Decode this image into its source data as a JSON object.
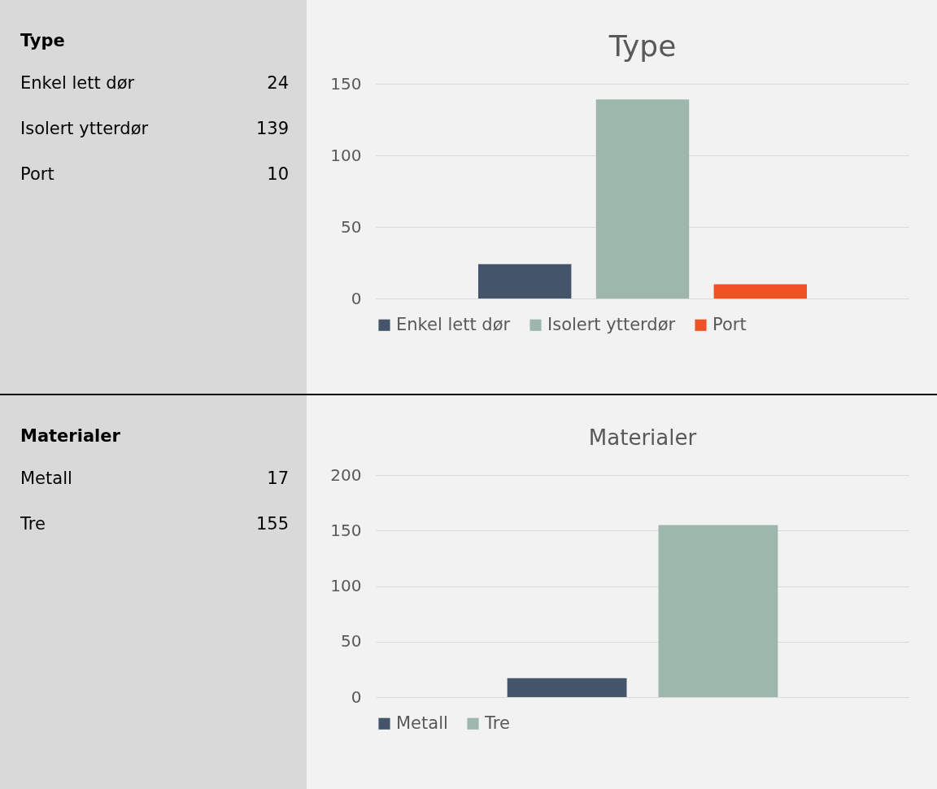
{
  "chart_data": [
    {
      "type": "other",
      "title": "Type",
      "categories": [
        "Enkel lett dør",
        "Isolert ytterdør",
        "Port"
      ],
      "values": [
        24,
        139,
        10
      ],
      "data_labels": true
    },
    {
      "type": "bar",
      "title": "Type",
      "categories": [
        null
      ],
      "series": [
        {
          "name": "Enkel lett dør",
          "color": "#44546a",
          "values": [
            24
          ]
        },
        {
          "name": "Isolert ytterdør",
          "color": "#9db7ad",
          "values": [
            139
          ]
        },
        {
          "name": "Port",
          "color": "#f05323",
          "values": [
            10
          ]
        }
      ],
      "ylim": [
        0,
        150
      ],
      "yticks": [
        0,
        50,
        100,
        150
      ],
      "grid": "y",
      "legend": "bottom"
    },
    {
      "type": "other",
      "title": "Materialer",
      "categories": [
        "Metall",
        "Tre"
      ],
      "values": [
        17,
        155
      ],
      "data_labels": true
    },
    {
      "type": "bar",
      "title": "Materialer",
      "categories": [
        null
      ],
      "series": [
        {
          "name": "Metall",
          "color": "#44546a",
          "values": [
            17
          ]
        },
        {
          "name": "Tre",
          "color": "#9db7ad",
          "values": [
            155
          ]
        }
      ],
      "ylim": [
        0,
        200
      ],
      "yticks": [
        0,
        50,
        100,
        150,
        200
      ],
      "grid": "y",
      "legend": "bottom"
    }
  ]
}
